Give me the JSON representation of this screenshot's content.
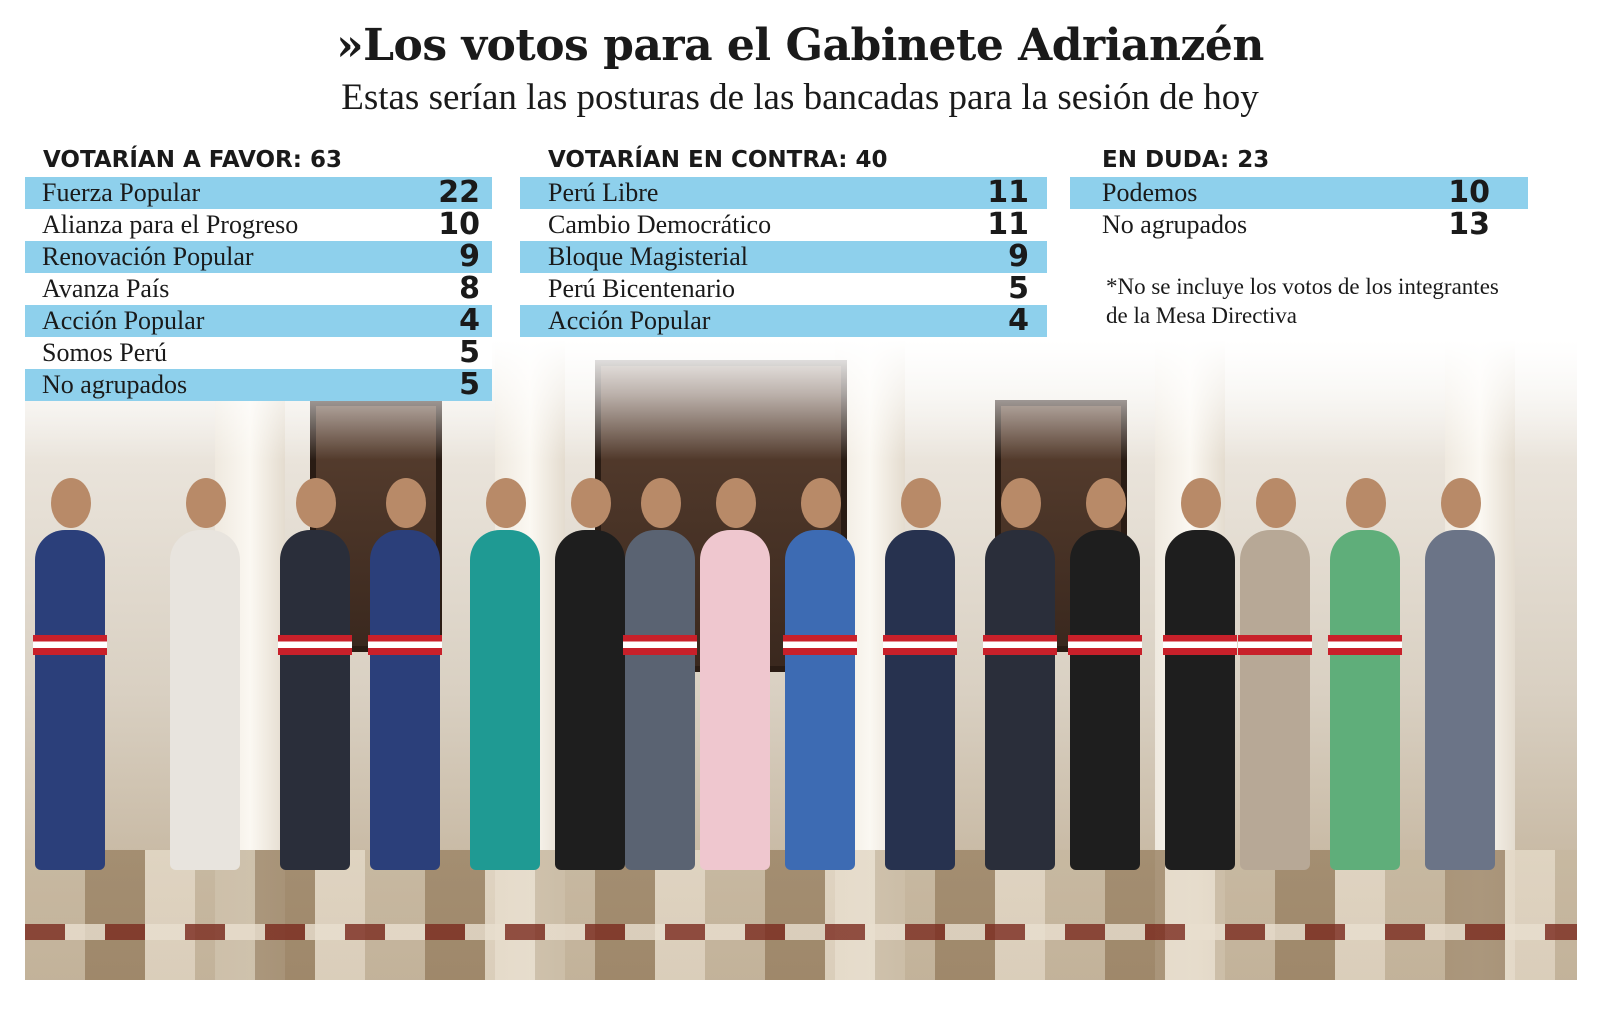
{
  "title": "»Los votos para el Gabinete Adrianzén",
  "subtitle": "Estas serían las posturas de las bancadas para la sesión de hoy",
  "favor": {
    "header": "VOTARÍAN A FAVOR: 63",
    "rows": [
      {
        "name": "Fuerza Popular",
        "votes": "22"
      },
      {
        "name": "Alianza para el Progreso",
        "votes": "10"
      },
      {
        "name": "Renovación Popular",
        "votes": "9"
      },
      {
        "name": "Avanza País",
        "votes": "8"
      },
      {
        "name": "Acción Popular",
        "votes": "4"
      },
      {
        "name": "Somos Perú",
        "votes": "5"
      },
      {
        "name": "No agrupados",
        "votes": "5"
      }
    ]
  },
  "contra": {
    "header": "VOTARÍAN EN CONTRA: 40",
    "rows": [
      {
        "name": "Perú Libre",
        "votes": "11"
      },
      {
        "name": "Cambio Democrático",
        "votes": "11"
      },
      {
        "name": "Bloque Magisterial",
        "votes": "9"
      },
      {
        "name": "Perú Bicentenario",
        "votes": "5"
      },
      {
        "name": "Acción Popular",
        "votes": "4"
      }
    ]
  },
  "duda": {
    "header": "EN DUDA: 23",
    "rows": [
      {
        "name": "Podemos",
        "votes": "10"
      },
      {
        "name": "No agrupados",
        "votes": "13"
      }
    ]
  },
  "note": "*No se incluye los votos de los integrantes de la Mesa Directiva",
  "colors": {
    "row_highlight": "#8ed0ec",
    "sash_red": "#c8202a"
  }
}
